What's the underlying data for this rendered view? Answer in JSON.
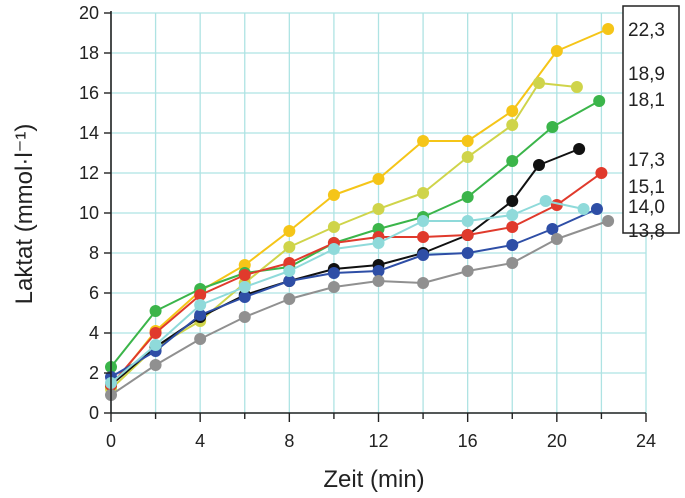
{
  "chart_data": {
    "type": "line",
    "xlabel": "Zeit (min)",
    "ylabel": "Laktat (mmol·l⁻¹)",
    "xlim": [
      0,
      24
    ],
    "ylim": [
      0,
      20
    ],
    "xticks": [
      "0",
      "4",
      "8",
      "12",
      "16",
      "20",
      "24"
    ],
    "xtick_values": [
      0,
      4,
      8,
      12,
      16,
      20,
      24
    ],
    "yticks": [
      "0",
      "2",
      "4",
      "6",
      "8",
      "10",
      "12",
      "14",
      "16",
      "18",
      "20"
    ],
    "ytick_values": [
      0,
      2,
      4,
      6,
      8,
      10,
      12,
      14,
      16,
      18,
      20
    ],
    "grid": true,
    "grid_color": "#aee3e3",
    "end_labels": [
      "22,3",
      "18,9",
      "18,1",
      "17,3",
      "15,1",
      "14,0",
      "13,8"
    ],
    "series": [
      {
        "color": "#f5c518",
        "x": [
          0,
          2,
          4,
          6,
          8,
          10,
          12,
          14,
          16,
          18,
          20,
          22.3
        ],
        "y": [
          1.3,
          4.1,
          6.1,
          7.4,
          9.1,
          10.9,
          11.7,
          13.6,
          13.6,
          15.1,
          18.1,
          19.2
        ]
      },
      {
        "color": "#cfd44a",
        "x": [
          0,
          2,
          4,
          6,
          8,
          10,
          12,
          14,
          16,
          18,
          19.2,
          20.9
        ],
        "y": [
          1.2,
          3.3,
          4.6,
          6.5,
          8.3,
          9.3,
          10.2,
          11.0,
          12.8,
          14.4,
          16.5,
          16.3
        ]
      },
      {
        "color": "#3bb54a",
        "x": [
          0,
          2,
          4,
          6,
          8,
          10,
          12,
          14,
          16,
          18,
          19.8,
          21.9
        ],
        "y": [
          2.3,
          5.1,
          6.2,
          7.0,
          7.3,
          8.5,
          9.2,
          9.8,
          10.8,
          12.6,
          14.3,
          15.6
        ]
      },
      {
        "color": "#111111",
        "x": [
          0,
          2,
          4,
          6,
          8,
          10,
          12,
          14,
          16,
          18,
          19.2,
          21.0
        ],
        "y": [
          1.4,
          3.3,
          4.8,
          5.9,
          6.6,
          7.2,
          7.4,
          8.0,
          8.9,
          10.6,
          12.4,
          13.2
        ]
      },
      {
        "color": "#e03a2c",
        "x": [
          0,
          2,
          4,
          6,
          8,
          10,
          12,
          14,
          16,
          18,
          20,
          22.0
        ],
        "y": [
          1.4,
          4.0,
          5.9,
          6.9,
          7.5,
          8.5,
          8.8,
          8.8,
          8.9,
          9.3,
          10.4,
          12.0
        ]
      },
      {
        "color": "#2e4ea6",
        "x": [
          0,
          2,
          4,
          6,
          8,
          10,
          12,
          14,
          16,
          18,
          19.8,
          21.8
        ],
        "y": [
          1.8,
          3.1,
          4.9,
          5.8,
          6.6,
          7.0,
          7.1,
          7.9,
          8.0,
          8.4,
          9.2,
          10.2
        ]
      },
      {
        "color": "#8fdada",
        "x": [
          0,
          2,
          4,
          6,
          8,
          10,
          12,
          14,
          16,
          18,
          19.5,
          21.2
        ],
        "y": [
          1.5,
          3.4,
          5.4,
          6.3,
          7.1,
          8.2,
          8.5,
          9.6,
          9.6,
          9.9,
          10.6,
          10.2
        ]
      },
      {
        "color": "#909090",
        "x": [
          0,
          2,
          4,
          6,
          8,
          10,
          12,
          14,
          16,
          18,
          20,
          22.3
        ],
        "y": [
          0.9,
          2.4,
          3.7,
          4.8,
          5.7,
          6.3,
          6.6,
          6.5,
          7.1,
          7.5,
          8.7,
          9.6
        ]
      }
    ]
  }
}
